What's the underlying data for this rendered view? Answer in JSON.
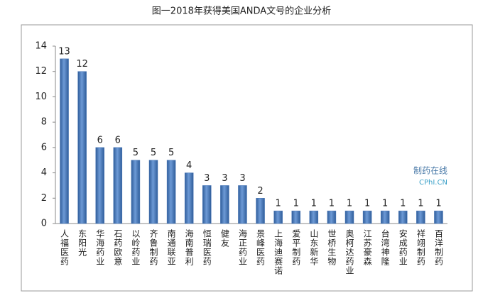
{
  "chart_data": {
    "type": "bar",
    "title": "图一2018年获得美国ANDA文号的企业分析",
    "categories": [
      "人福医药",
      "东阳光",
      "华海药业",
      "石药欧意",
      "以岭药业",
      "齐鲁制药",
      "南通联亚",
      "海南普利",
      "恒瑞医药",
      "健友",
      "海正药业",
      "景峰医药",
      "上海迪赛诺",
      "爱平制药",
      "山东新华",
      "世桥生物",
      "奥柯达药业",
      "江苏豪森",
      "台湾神隆",
      "安成药业",
      "祥翊制药",
      "百洋制药"
    ],
    "values": [
      13,
      12,
      6,
      6,
      5,
      5,
      5,
      4,
      3,
      3,
      3,
      2,
      1,
      1,
      1,
      1,
      1,
      1,
      1,
      1,
      1,
      1
    ],
    "color": "#4a78b8",
    "ylim": [
      0,
      14
    ],
    "yticks": [
      0,
      2,
      4,
      6,
      8,
      10,
      12,
      14
    ],
    "grid": false,
    "watermark": [
      "制药在线",
      "CPhI.CN"
    ]
  }
}
